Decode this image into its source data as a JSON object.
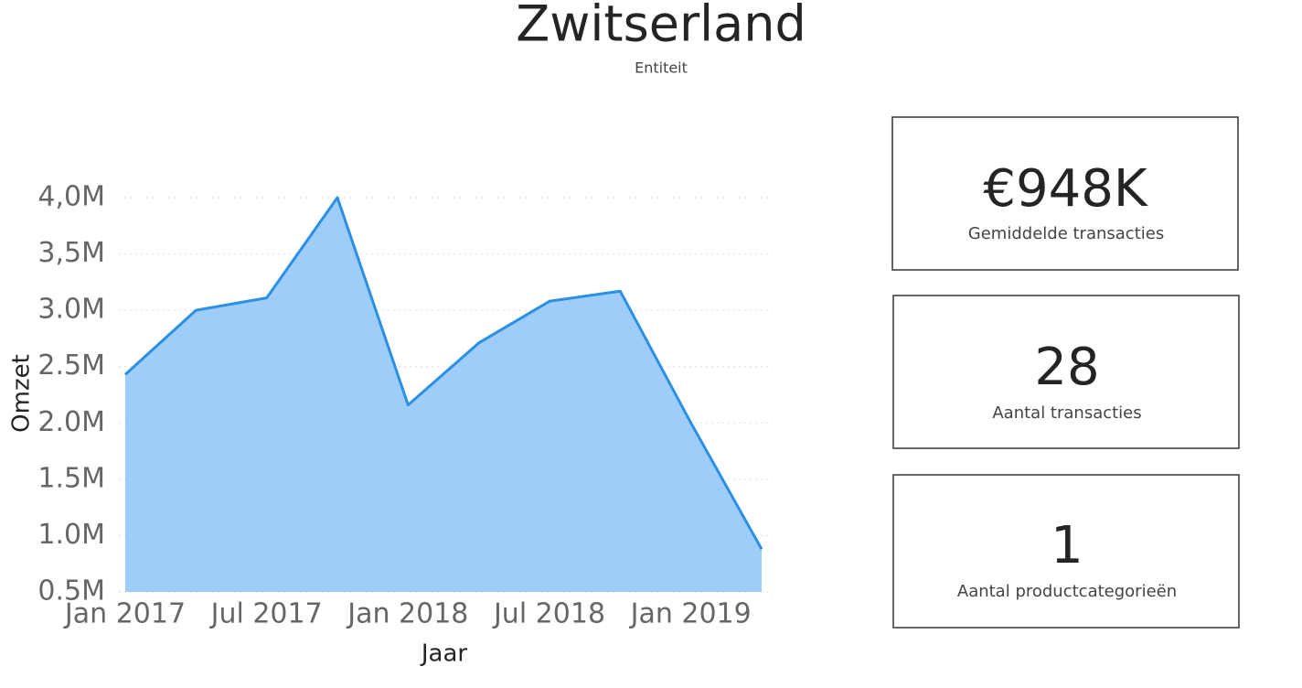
{
  "page": {
    "title": "Zwitserland",
    "subtitle": "Entiteit"
  },
  "chart_data": {
    "type": "area",
    "x_label": "Jaar",
    "y_label": "Omzet",
    "x": [
      "2017-01",
      "2017-04",
      "2017-07",
      "2017-10",
      "2018-01",
      "2018-04",
      "2018-07",
      "2018-10",
      "2019-01",
      "2019-04"
    ],
    "values": [
      2430000,
      3000000,
      3110000,
      4000000,
      2160000,
      2710000,
      3080000,
      3170000,
      2000000,
      880000
    ],
    "color": "#2b8fe3",
    "fill_color": "#9ecdfa",
    "xlim": [
      "2017-01",
      "2019-04"
    ],
    "xticks": [
      {
        "value": "2017-01",
        "label": "Jan 2017"
      },
      {
        "value": "2017-07",
        "label": "Jul 2017"
      },
      {
        "value": "2018-01",
        "label": "Jan 2018"
      },
      {
        "value": "2018-07",
        "label": "Jul 2018"
      },
      {
        "value": "2019-01",
        "label": "Jan 2019"
      }
    ],
    "ylim": [
      500000,
      4000000
    ],
    "yticks": [
      {
        "value": 500000,
        "label": "0.5M"
      },
      {
        "value": 1000000,
        "label": "1.0M"
      },
      {
        "value": 1500000,
        "label": "1.5M"
      },
      {
        "value": 2000000,
        "label": "2.0M"
      },
      {
        "value": 2500000,
        "label": "2.5M"
      },
      {
        "value": 3000000,
        "label": "3.0M"
      },
      {
        "value": 3500000,
        "label": "3,5M"
      },
      {
        "value": 4000000,
        "label": "4,0M"
      }
    ],
    "grid": true
  },
  "cards": [
    {
      "value": "€948K",
      "label": "Gemiddelde transacties"
    },
    {
      "value": "28",
      "label": "Aantal transacties"
    },
    {
      "value": "1",
      "label": "Aantal productcategorieën"
    }
  ]
}
